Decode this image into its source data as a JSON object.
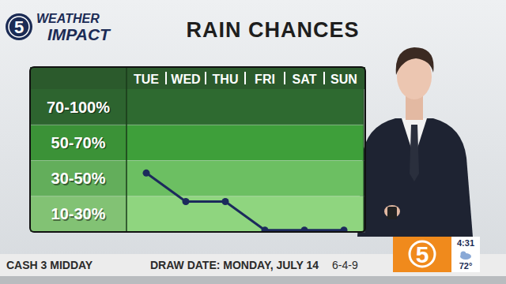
{
  "header": {
    "logo_number": "5",
    "logo_line1": "WEATHER",
    "logo_line2": "IMPACT"
  },
  "chart_data": {
    "type": "line",
    "title": "RAIN CHANCES",
    "categories": [
      "TUE",
      "WED",
      "THU",
      "FRI",
      "SAT",
      "SUN"
    ],
    "values": [
      43,
      27,
      27,
      11,
      11,
      11
    ],
    "color": "#1c2a5c",
    "marker": "circle",
    "ylim": [
      10,
      100
    ],
    "bands": [
      {
        "from": 10,
        "to": 30,
        "label": "10-30%",
        "color": "#8fd57f"
      },
      {
        "from": 30,
        "to": 50,
        "label": "30-50%",
        "color": "#6cbf62"
      },
      {
        "from": 50,
        "to": 70,
        "label": "50-70%",
        "color": "#3e9f3a"
      },
      {
        "from": 70,
        "to": 100,
        "label": "70-100%",
        "color": "#2e6a30"
      }
    ]
  },
  "ticker": {
    "game": "CASH 3 MIDDAY",
    "draw_date": "DRAW DATE: MONDAY, JULY 14",
    "numbers": "6-4-9"
  },
  "bug": {
    "channel": "5",
    "time": "4:31",
    "temperature": "72°"
  }
}
